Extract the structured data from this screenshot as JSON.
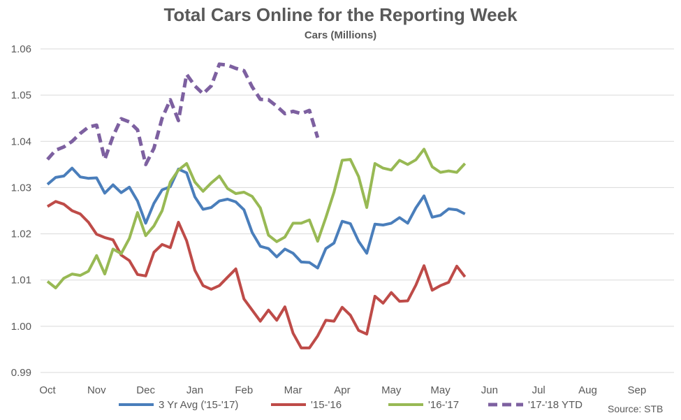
{
  "chart_data": {
    "type": "line",
    "title": "Total Cars Online for the Reporting Week",
    "subtitle": "Cars (Millions)",
    "source": "Source:  STB",
    "ylim": [
      0.99,
      1.06
    ],
    "yticks": [
      "0.99",
      "1.00",
      "1.01",
      "1.02",
      "1.03",
      "1.04",
      "1.05",
      "1.06"
    ],
    "ytick_values": [
      0.99,
      1.0,
      1.01,
      1.02,
      1.03,
      1.04,
      1.05,
      1.06
    ],
    "grid": true,
    "legend_position": "bottom",
    "x_weeks": 53,
    "xtick_labels": [
      {
        "week": 1,
        "label": "Oct"
      },
      {
        "week": 7,
        "label": "Nov"
      },
      {
        "week": 13,
        "label": "Dec"
      },
      {
        "week": 19,
        "label": "Jan"
      },
      {
        "week": 25,
        "label": "Feb"
      },
      {
        "week": 31,
        "label": "Mar"
      },
      {
        "week": 37,
        "label": "Apr"
      },
      {
        "week": 43,
        "label": "May"
      },
      {
        "week": 49,
        "label": "May"
      },
      {
        "week": 55,
        "label": "Jun"
      },
      {
        "week": 61,
        "label": "Jul"
      },
      {
        "week": 67,
        "label": "Aug"
      },
      {
        "week": 73,
        "label": "Sep"
      }
    ],
    "series": [
      {
        "name": "3 Yr Avg ('15-'17)",
        "color": "#4a7ebb",
        "dashed": false,
        "values": [
          1.0307,
          1.0322,
          1.0325,
          1.0342,
          1.0323,
          1.032,
          1.0321,
          1.0288,
          1.0306,
          1.0289,
          1.0301,
          1.0271,
          1.0223,
          1.0266,
          1.0295,
          1.0302,
          1.034,
          1.0332,
          1.028,
          1.0253,
          1.0257,
          1.0271,
          1.0275,
          1.0269,
          1.0252,
          1.0203,
          1.0173,
          1.0168,
          1.015,
          1.0167,
          1.0158,
          1.0139,
          1.0138,
          1.0126,
          1.0168,
          1.018,
          1.0227,
          1.0222,
          1.0184,
          1.0158,
          1.0221,
          1.0219,
          1.0223,
          1.0235,
          1.0223,
          1.0256,
          1.0282,
          1.0236,
          1.024,
          1.0254,
          1.0252,
          1.0243
        ]
      },
      {
        "name": "'15-'16",
        "color": "#be4b48",
        "dashed": false,
        "values": [
          1.0259,
          1.027,
          1.0264,
          1.025,
          1.0243,
          1.0225,
          1.0199,
          1.0192,
          1.0187,
          1.0154,
          1.0142,
          1.0112,
          1.0109,
          1.016,
          1.0177,
          1.017,
          1.0225,
          1.0185,
          1.0121,
          1.0088,
          1.008,
          1.0088,
          1.0106,
          1.0124,
          1.0059,
          1.0035,
          1.0011,
          1.0035,
          1.0013,
          1.0042,
          0.9985,
          0.9953,
          0.9953,
          0.9979,
          1.0013,
          1.0011,
          1.0041,
          1.0024,
          0.9991,
          0.9983,
          1.0065,
          1.005,
          1.0073,
          1.0054,
          1.0055,
          1.0089,
          1.0131,
          1.0078,
          1.0088,
          1.0095,
          1.013,
          1.0107
        ]
      },
      {
        "name": "'16-'17",
        "color": "#98b954",
        "dashed": false,
        "values": [
          1.0097,
          1.0083,
          1.0104,
          1.0113,
          1.011,
          1.0119,
          1.0153,
          1.0113,
          1.0167,
          1.0157,
          1.019,
          1.0246,
          1.0196,
          1.0217,
          1.025,
          1.0312,
          1.0338,
          1.0352,
          1.0312,
          1.0292,
          1.031,
          1.0325,
          1.0298,
          1.0287,
          1.029,
          1.0281,
          1.0256,
          1.0197,
          1.0183,
          1.0193,
          1.0223,
          1.0223,
          1.023,
          1.0184,
          1.0235,
          1.029,
          1.0359,
          1.0361,
          1.0324,
          1.0257,
          1.0352,
          1.0342,
          1.0338,
          1.0359,
          1.035,
          1.036,
          1.0383,
          1.0345,
          1.0333,
          1.0336,
          1.0333,
          1.0352
        ]
      },
      {
        "name": "'17-'18 YTD",
        "color": "#7d60a0",
        "dashed": true,
        "values": [
          1.0361,
          1.0381,
          1.0388,
          1.04,
          1.0417,
          1.0431,
          1.0435,
          1.0361,
          1.0411,
          1.0449,
          1.0442,
          1.0425,
          1.035,
          1.0385,
          1.045,
          1.049,
          1.0445,
          1.0545,
          1.052,
          1.0503,
          1.052,
          1.0567,
          1.0565,
          1.0558,
          1.0553,
          1.0518,
          1.0491,
          1.049,
          1.0476,
          1.046,
          1.0465,
          1.046,
          1.0467,
          1.0408
        ]
      }
    ]
  }
}
